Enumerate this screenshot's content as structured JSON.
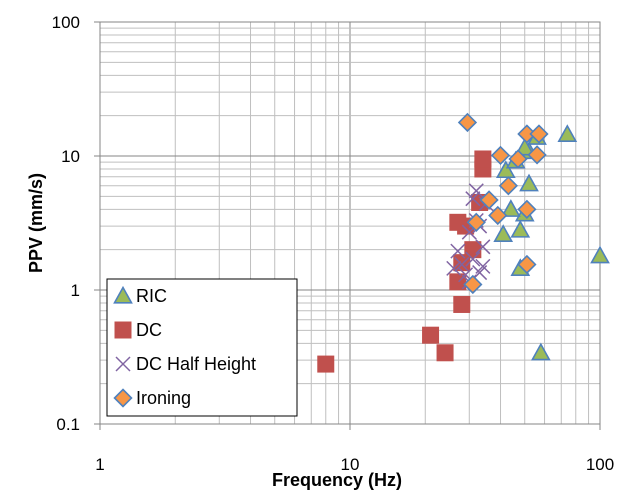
{
  "chart_data": {
    "type": "scatter",
    "xlabel": "Frequency (Hz)",
    "ylabel": "PPV  (mm/s)",
    "xscale": "log",
    "yscale": "log",
    "xlim": [
      1,
      100
    ],
    "ylim": [
      0.1,
      100
    ],
    "grid": true,
    "legend": "bottom-left",
    "x_ticks": [
      "1",
      "10",
      "100"
    ],
    "y_ticks": [
      "0.1",
      "1",
      "10",
      "100"
    ],
    "series": [
      {
        "name": "RIC",
        "marker": "triangle",
        "color": "#9BBB59",
        "edge": "#4F81BD",
        "points": [
          [
            74,
            14.5
          ],
          [
            100,
            1.8
          ],
          [
            58,
            0.34
          ],
          [
            52,
            6.2
          ],
          [
            50,
            3.7
          ],
          [
            48,
            2.8
          ],
          [
            48,
            1.45
          ],
          [
            44,
            4.0
          ],
          [
            41,
            2.6
          ],
          [
            42,
            7.8
          ],
          [
            52,
            10.8
          ],
          [
            50,
            11.5
          ],
          [
            46,
            9.2
          ],
          [
            56,
            13.8
          ]
        ]
      },
      {
        "name": "DC",
        "marker": "square",
        "color": "#C0504D",
        "edge": "#C0504D",
        "points": [
          [
            8,
            0.28
          ],
          [
            21,
            0.46
          ],
          [
            24,
            0.34
          ],
          [
            28,
            0.78
          ],
          [
            27,
            1.15
          ],
          [
            28,
            1.6
          ],
          [
            29,
            3.0
          ],
          [
            27,
            3.2
          ],
          [
            31,
            2.0
          ],
          [
            33,
            4.5
          ],
          [
            34,
            8.0
          ],
          [
            34,
            9.5
          ]
        ]
      },
      {
        "name": "DC Half Height",
        "marker": "x",
        "color": "#8064A2",
        "edge": "#8064A2",
        "points": [
          [
            26,
            1.45
          ],
          [
            27,
            1.95
          ],
          [
            28,
            1.55
          ],
          [
            29,
            1.3
          ],
          [
            30,
            1.15
          ],
          [
            31,
            1.7
          ],
          [
            33,
            1.35
          ],
          [
            34,
            2.1
          ],
          [
            30,
            2.7
          ],
          [
            32,
            3.3
          ],
          [
            33,
            3.0
          ],
          [
            31,
            4.8
          ],
          [
            35,
            4.4
          ],
          [
            32,
            5.5
          ],
          [
            34,
            1.5
          ]
        ]
      },
      {
        "name": "Ironing",
        "marker": "diamond",
        "color": "#F79646",
        "edge": "#4F81BD",
        "points": [
          [
            29.5,
            17.8
          ],
          [
            31,
            1.1
          ],
          [
            32,
            3.2
          ],
          [
            36,
            4.7
          ],
          [
            39,
            3.6
          ],
          [
            40,
            10.1
          ],
          [
            43,
            6.0
          ],
          [
            47,
            9.5
          ],
          [
            51,
            14.6
          ],
          [
            57,
            14.6
          ],
          [
            56,
            10.2
          ],
          [
            51,
            4.0
          ],
          [
            51,
            1.55
          ]
        ]
      }
    ]
  }
}
